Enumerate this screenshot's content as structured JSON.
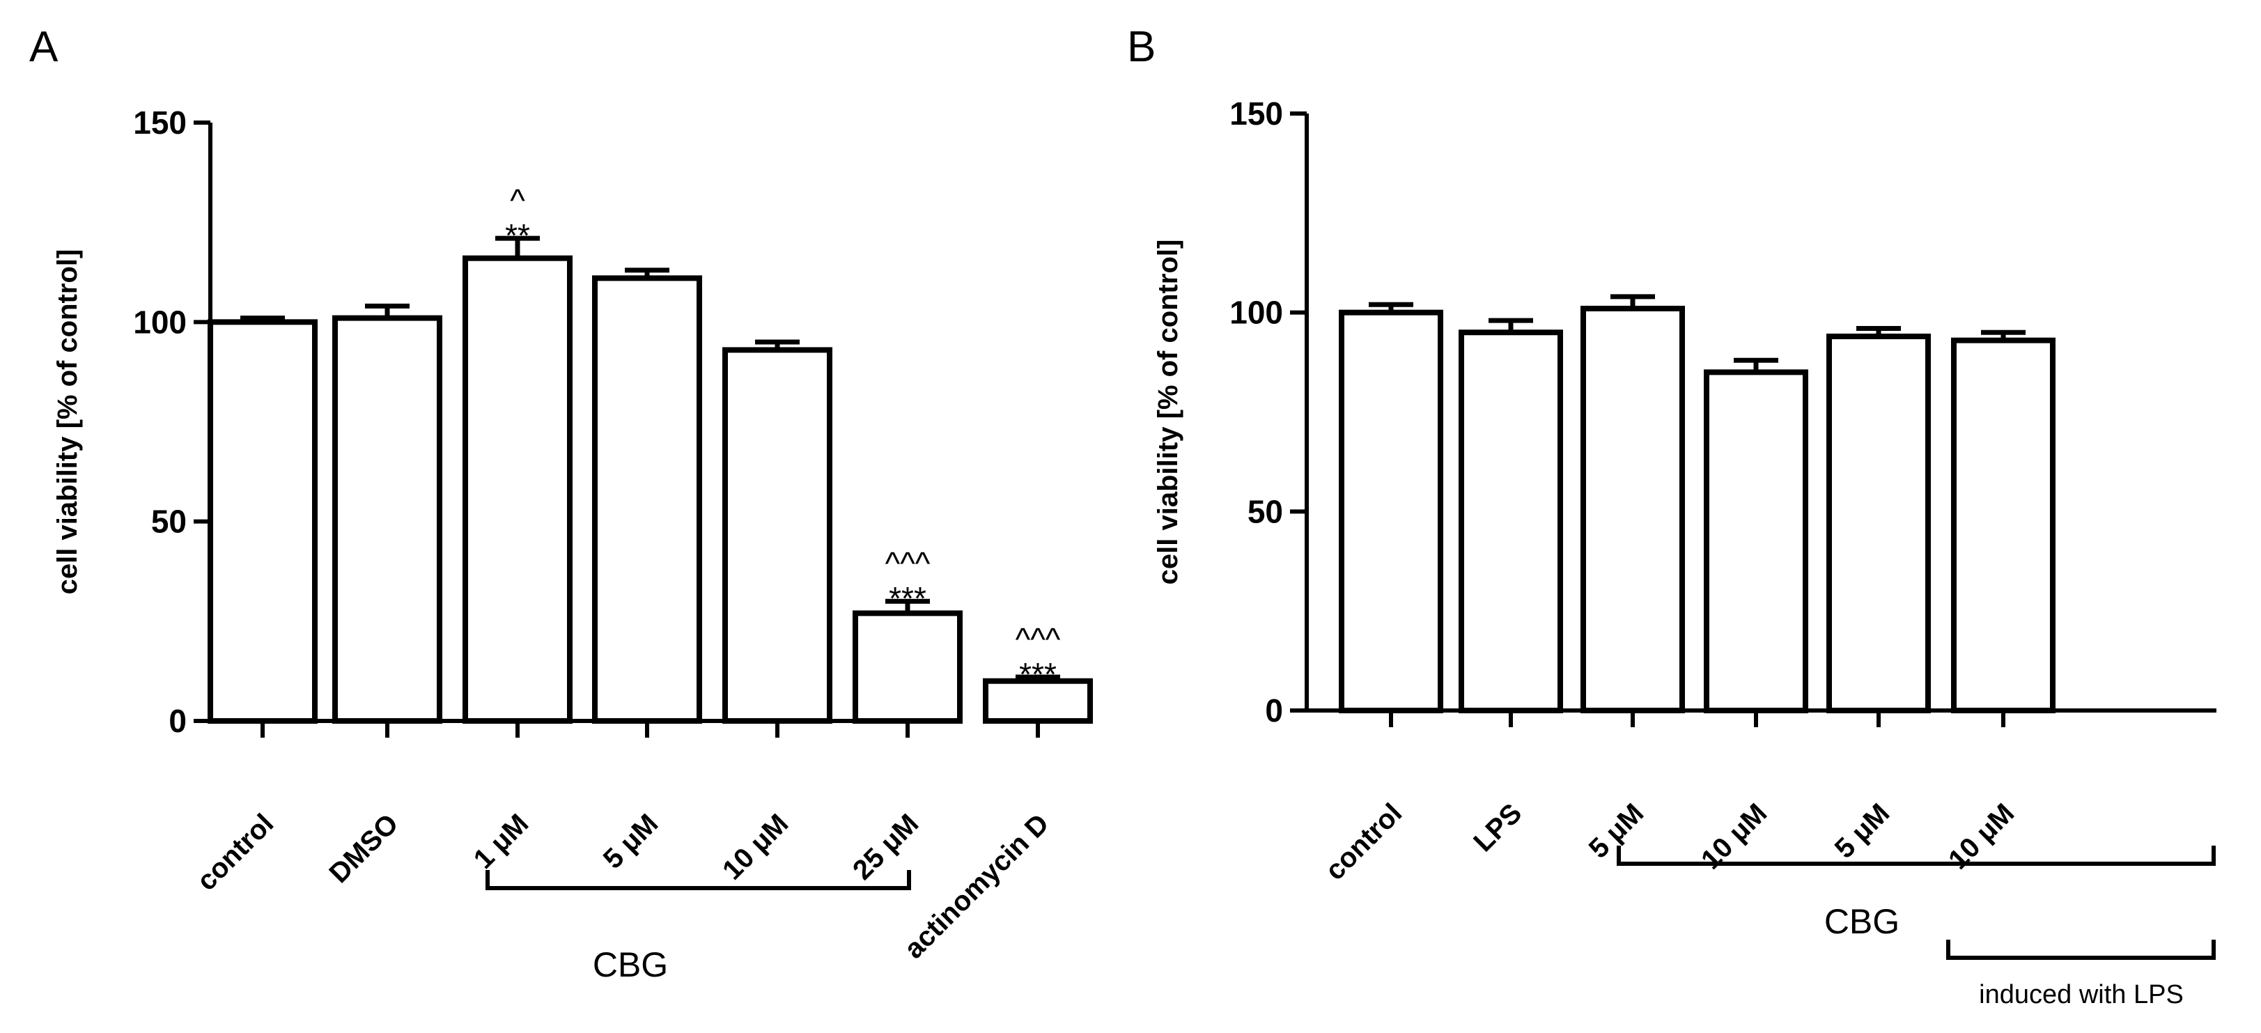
{
  "chart_data": [
    {
      "type": "bar",
      "panel": "A",
      "ylabel": "cell viability [% of control]",
      "ylim": [
        0,
        150
      ],
      "yticks": [
        "0",
        "50",
        "100",
        "150"
      ],
      "categories": [
        "control",
        "DMSO",
        "1 μM",
        "5 μM",
        "10 μM",
        "25 μM",
        "actinomycin D"
      ],
      "values": [
        100,
        101,
        116,
        111,
        93,
        27,
        10
      ],
      "errors": [
        1,
        3,
        5,
        2,
        2,
        3,
        1
      ],
      "annotations": [
        {
          "index": 2,
          "stars": "**",
          "carets": "^"
        },
        {
          "index": 5,
          "stars": "***",
          "carets": "^^^"
        },
        {
          "index": 6,
          "stars": "***",
          "carets": "^^^"
        }
      ],
      "bracket_label": "CBG"
    },
    {
      "type": "bar",
      "panel": "B",
      "ylabel": "cell viability [% of control]",
      "ylim": [
        0,
        150
      ],
      "yticks": [
        "0",
        "50",
        "100",
        "150"
      ],
      "categories": [
        "control",
        "LPS",
        "5 μM",
        "10 μM",
        "5 μM",
        "10 μM"
      ],
      "values": [
        100,
        95,
        101,
        85,
        94,
        93
      ],
      "errors": [
        2,
        3,
        3,
        3,
        2,
        2
      ],
      "annotations": [],
      "bracket_label": "CBG",
      "bracket_label_2": "induced with LPS"
    }
  ]
}
